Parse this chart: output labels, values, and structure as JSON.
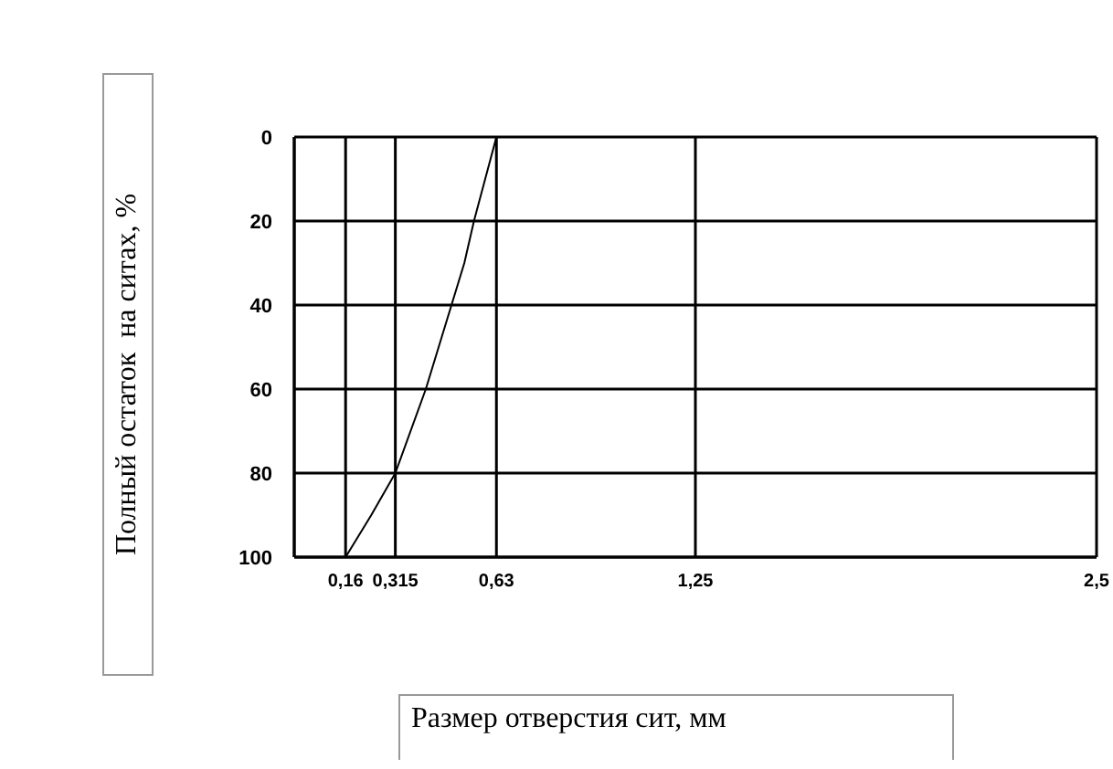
{
  "chart_data": {
    "type": "line",
    "xlabel": "Размер отверстия сит, мм",
    "ylabel": "Полный остаток  на ситах, %",
    "x": [
      0.16,
      0.24,
      0.315,
      0.41,
      0.49,
      0.53,
      0.56,
      0.63
    ],
    "series": [
      {
        "color": "#000000",
        "values": [
          100,
          90,
          80,
          60,
          40,
          30,
          20,
          0
        ]
      }
    ],
    "xlim": [
      0,
      2.5
    ],
    "xticks": [
      {
        "value": 0.16,
        "label": "0,16"
      },
      {
        "value": 0.315,
        "label": "0,315"
      },
      {
        "value": 0.63,
        "label": "0,63"
      },
      {
        "value": 1.25,
        "label": "1,25"
      },
      {
        "value": 2.5,
        "label": "2,5"
      }
    ],
    "ylim": [
      100,
      0
    ],
    "yticks": [
      0,
      20,
      40,
      60,
      80,
      100
    ],
    "grid": true,
    "marker": "none",
    "line_style": "solid"
  }
}
